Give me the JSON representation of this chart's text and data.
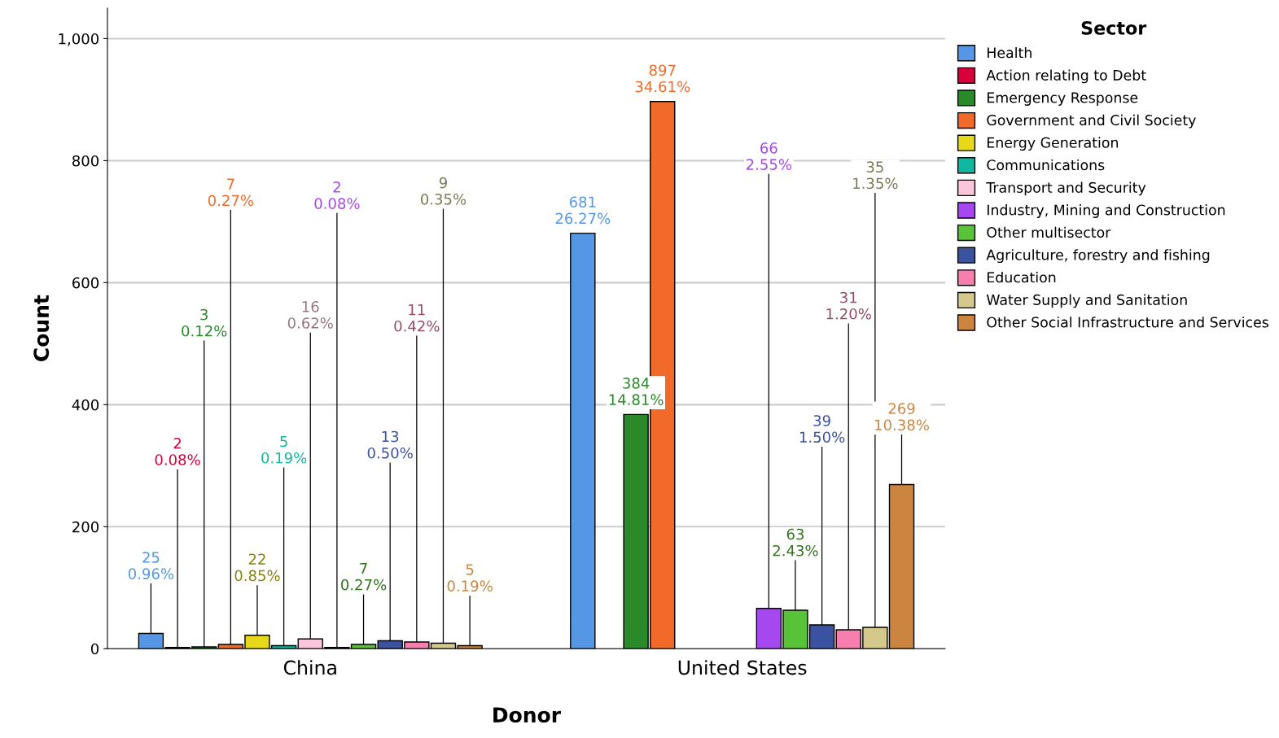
{
  "chart_data": {
    "type": "bar",
    "xlabel": "Donor",
    "ylabel": "Count",
    "legend_title": "Sector",
    "categories": [
      "China",
      "United States"
    ],
    "ylim": [
      0,
      1050
    ],
    "yticks": [
      0,
      200,
      400,
      600,
      800,
      {
        "value": 1000,
        "label": "1,000"
      }
    ],
    "grid": "y",
    "legend": "right",
    "series": [
      {
        "name": "Health",
        "color": "#5597e4",
        "values": [
          25,
          681
        ],
        "value_labels": [
          "25\n0.96%",
          "681\n26.27%"
        ]
      },
      {
        "name": "Action relating to Debt",
        "color": "#d6003a",
        "values": [
          2,
          null
        ],
        "value_labels": [
          "2\n0.08%",
          null
        ]
      },
      {
        "name": "Emergency Response",
        "color": "#2a8a2a",
        "values": [
          3,
          384
        ],
        "value_labels": [
          "3\n0.12%",
          "384\n14.81%"
        ]
      },
      {
        "name": "Government and Civil Society",
        "color": "#f26a2a",
        "values": [
          7,
          897
        ],
        "value_labels": [
          "7\n0.27%",
          "897\n34.61%"
        ]
      },
      {
        "name": "Energy Generation",
        "color": "#e8d81a",
        "values": [
          22,
          null
        ],
        "value_labels": [
          "22\n0.85%",
          null
        ]
      },
      {
        "name": "Communications",
        "color": "#10b8a0",
        "values": [
          5,
          null
        ],
        "value_labels": [
          "5\n0.19%",
          null
        ]
      },
      {
        "name": "Transport and Security",
        "color": "#fbc6dc",
        "values": [
          16,
          null
        ],
        "value_labels": [
          "16\n0.62%",
          null
        ]
      },
      {
        "name": "Industry, Mining and Construction",
        "color": "#a648f0",
        "values": [
          2,
          66
        ],
        "value_labels": [
          "2\n0.08%",
          "66\n2.55%"
        ]
      },
      {
        "name": "Other multisector",
        "color": "#58c238",
        "values": [
          7,
          63
        ],
        "value_labels": [
          "7\n0.27%",
          "63\n2.43%"
        ]
      },
      {
        "name": "Agriculture, forestry and fishing",
        "color": "#3a52a0",
        "values": [
          13,
          39
        ],
        "value_labels": [
          "13\n0.50%",
          "39\n1.50%"
        ]
      },
      {
        "name": "Education",
        "color": "#f77fae",
        "values": [
          11,
          31
        ],
        "value_labels": [
          "11\n0.42%",
          "31\n1.20%"
        ]
      },
      {
        "name": "Water Supply and Sanitation",
        "color": "#d4c88a",
        "values": [
          9,
          35
        ],
        "value_labels": [
          "9\n0.35%",
          "35\n1.35%"
        ]
      },
      {
        "name": "Other Social Infrastructure and Services",
        "color": "#cc8540",
        "values": [
          5,
          269
        ],
        "value_labels": [
          "5\n0.19%",
          "269\n10.38%"
        ]
      }
    ]
  }
}
